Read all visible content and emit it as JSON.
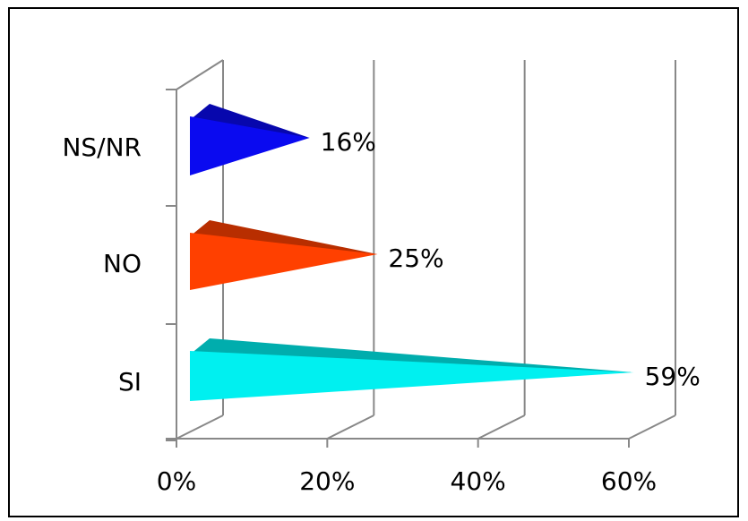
{
  "chart_data": {
    "type": "bar",
    "orientation": "horizontal",
    "bar_shape": "3d-cone",
    "categories": [
      "NS/NR",
      "NO",
      "SI"
    ],
    "values": [
      16,
      25,
      59
    ],
    "value_labels": [
      "16%",
      "25%",
      "59%"
    ],
    "colors": [
      "#0a0af0",
      "#ff4000",
      "#00f0f0"
    ],
    "xlim": [
      0,
      60
    ],
    "x_ticks": [
      0,
      20,
      40,
      60
    ],
    "x_tick_labels": [
      "0%",
      "20%",
      "40%",
      "60%"
    ],
    "grid": true,
    "legend": "none"
  }
}
